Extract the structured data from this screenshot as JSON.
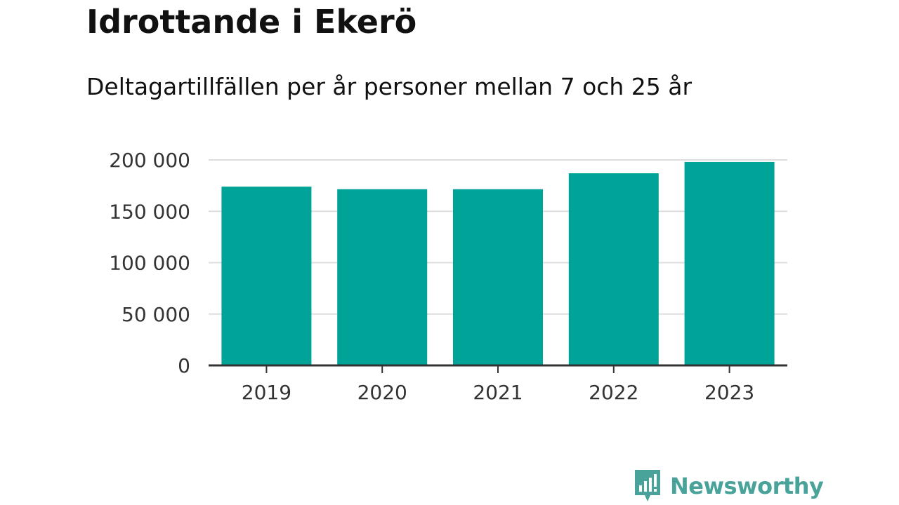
{
  "title": "Idrottande i Ekerö",
  "subtitle": "Deltagartillfällen per år personer mellan 7 och 25 år",
  "brand": {
    "name": "Newsworthy",
    "icon": "newsworthy-logo-icon",
    "color": "#4aa39b"
  },
  "chart_data": {
    "type": "bar",
    "title": "Idrottande i Ekerö",
    "subtitle": "Deltagartillfällen per år personer mellan 7 och 25 år",
    "xlabel": "",
    "ylabel": "",
    "categories": [
      "2019",
      "2020",
      "2021",
      "2022",
      "2023"
    ],
    "values": [
      174000,
      171500,
      171500,
      187000,
      198000
    ],
    "ylim": [
      0,
      200000
    ],
    "yticks": [
      0,
      50000,
      100000,
      150000,
      200000
    ],
    "ytick_labels": [
      "0",
      "50 000",
      "100 000",
      "150 000",
      "200 000"
    ],
    "grid": true,
    "legend": "none",
    "bar_color": "#00a398",
    "grid_color": "#dddddd",
    "axis_color": "#333333"
  }
}
